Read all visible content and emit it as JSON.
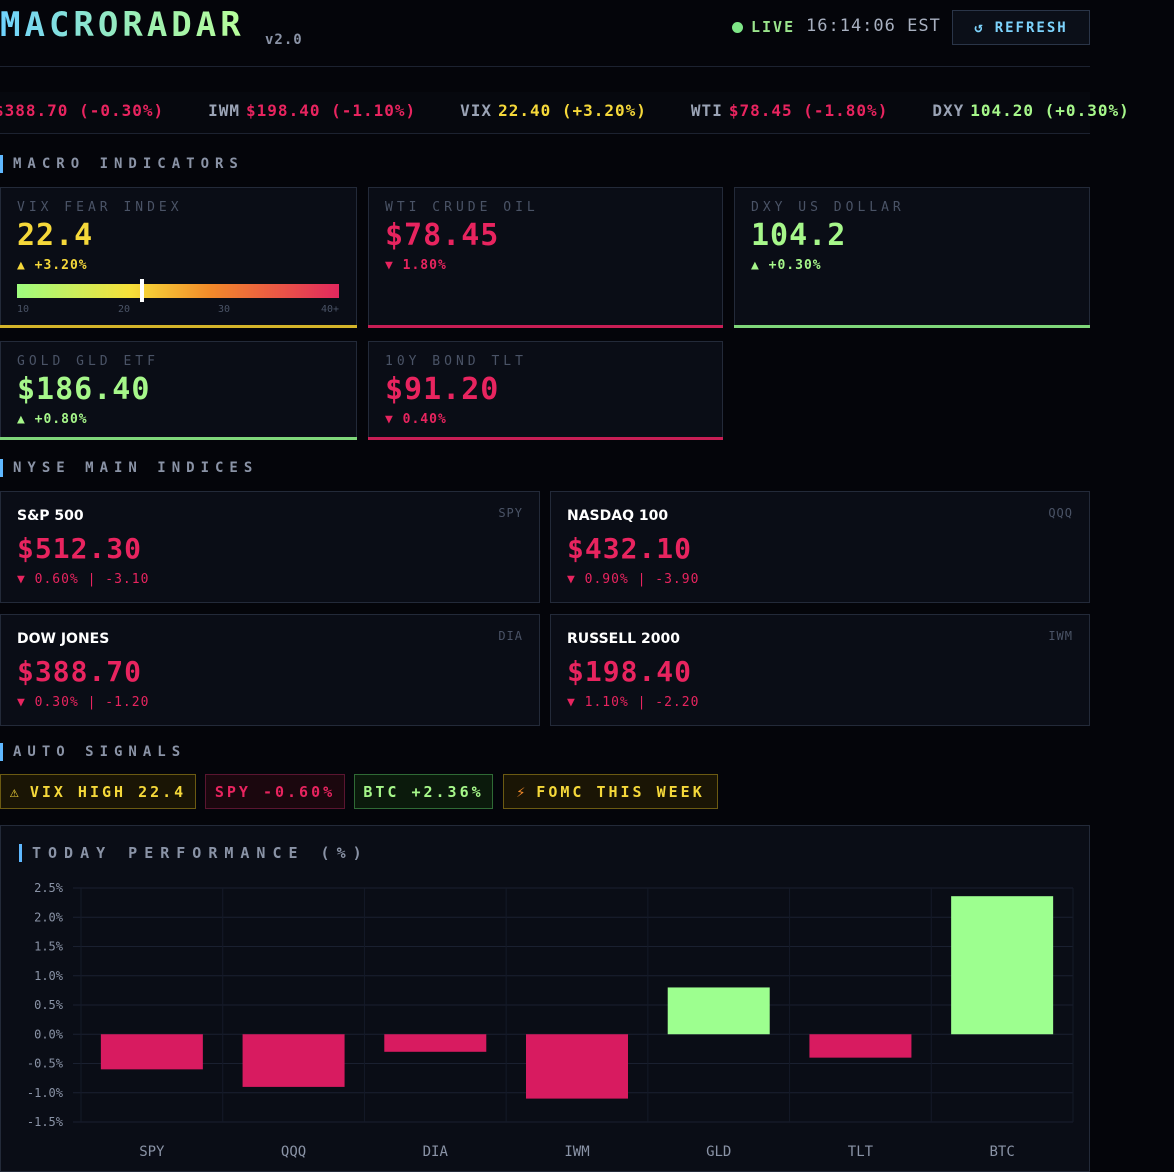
{
  "header": {
    "app_name": "MACRORADAR",
    "version": "v2.0",
    "live_label": "LIVE",
    "clock": "16:14:06 EST",
    "refresh_label": "REFRESH",
    "refresh_icon": "refresh-icon"
  },
  "ticker": [
    {
      "symbol": "",
      "price": "$388.70",
      "change": "(-0.30%)",
      "direction": "down"
    },
    {
      "symbol": "IWM",
      "price": "$198.40",
      "change": "(-1.10%)",
      "direction": "down"
    },
    {
      "symbol": "VIX",
      "price": "22.40",
      "change": "(+3.20%)",
      "direction": "up-warn"
    },
    {
      "symbol": "WTI",
      "price": "$78.45",
      "change": "(-1.80%)",
      "direction": "down"
    },
    {
      "symbol": "DXY",
      "price": "104.20",
      "change": "(+0.30%)",
      "direction": "up"
    }
  ],
  "sections": {
    "macro": "MACRO INDICATORS",
    "indices": "NYSE MAIN INDICES",
    "signals": "AUTO SIGNALS"
  },
  "macro": [
    {
      "label": "VIX FEAR INDEX",
      "value": "22.4",
      "change": "▲ +3.20%",
      "color": "#f5d83a",
      "change_color": "#f5d83a",
      "accent": "#d4b42a"
    },
    {
      "label": "WTI CRUDE OIL",
      "value": "$78.45",
      "change": "▼ 1.80%",
      "color": "#e8245f",
      "change_color": "#e8245f",
      "accent": "#c81e55"
    },
    {
      "label": "DXY US DOLLAR",
      "value": "104.2",
      "change": "▲ +0.30%",
      "color": "#a6f78a",
      "change_color": "#a6f78a",
      "accent": "#7fd67a"
    },
    {
      "label": "GOLD GLD ETF",
      "value": "$186.40",
      "change": "▲ +0.80%",
      "color": "#a6f78a",
      "change_color": "#a6f78a",
      "accent": "#7fd67a"
    },
    {
      "label": "10Y BOND TLT",
      "value": "$91.20",
      "change": "▼ 0.40%",
      "color": "#e8245f",
      "change_color": "#e8245f",
      "accent": "#c81e55"
    }
  ],
  "vix_gauge": {
    "ticks": [
      "10",
      "20",
      "30",
      "40+"
    ],
    "level": 22.4,
    "min": 10,
    "max": 42
  },
  "indices": [
    {
      "name": "S&P 500",
      "symbol": "SPY",
      "value": "$512.30",
      "change": "▼ 0.60% | -3.10"
    },
    {
      "name": "NASDAQ 100",
      "symbol": "QQQ",
      "value": "$432.10",
      "change": "▼ 0.90% | -3.90"
    },
    {
      "name": "DOW JONES",
      "symbol": "DIA",
      "value": "$388.70",
      "change": "▼ 0.30% | -1.20"
    },
    {
      "name": "RUSSELL 2000",
      "symbol": "IWM",
      "value": "$198.40",
      "change": "▼ 1.10% | -2.20"
    }
  ],
  "signals": [
    {
      "label": "VIX HIGH 22.4",
      "icon": "warning-icon",
      "glyph": "⚠",
      "color": "#f5d83a",
      "bg": "#1a1505",
      "border": "#6b5a12"
    },
    {
      "label": "SPY -0.60%",
      "icon": "",
      "glyph": "",
      "color": "#e8245f",
      "bg": "#1b070e",
      "border": "#5a1530"
    },
    {
      "label": "BTC +2.36%",
      "icon": "",
      "glyph": "",
      "color": "#a6f78a",
      "bg": "#0b1a0c",
      "border": "#2f6a35"
    },
    {
      "label": "FOMC THIS WEEK",
      "icon": "lightning-icon",
      "glyph": "⚡",
      "color": "#f5d83a",
      "bg": "#1a1505",
      "border": "#6b5a12"
    }
  ],
  "chart_data": {
    "type": "bar",
    "title": "TODAY PERFORMANCE (%)",
    "categories": [
      "SPY",
      "QQQ",
      "DIA",
      "IWM",
      "GLD",
      "TLT",
      "BTC"
    ],
    "values": [
      -0.6,
      -0.9,
      -0.3,
      -1.1,
      0.8,
      -0.4,
      2.36
    ],
    "ylim": [
      -1.5,
      2.5
    ],
    "yticks": [
      "2.5%",
      "2.0%",
      "1.5%",
      "1.0%",
      "0.5%",
      "0.0%",
      "-0.5%",
      "-1.0%",
      "-1.5%"
    ],
    "ytick_values": [
      2.5,
      2.0,
      1.5,
      1.0,
      0.5,
      0.0,
      -0.5,
      -1.0,
      -1.5
    ],
    "positive_color": "#9dff8f",
    "negative_color": "#d81b60",
    "grid": true,
    "xlabel": "",
    "ylabel": ""
  }
}
